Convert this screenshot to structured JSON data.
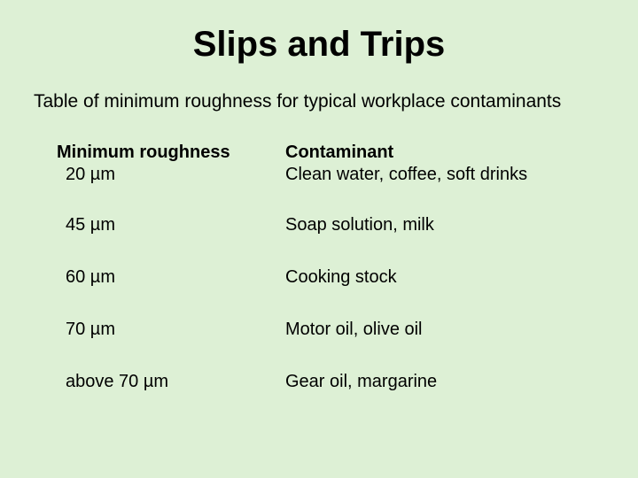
{
  "title": "Slips and Trips",
  "subtitle": "Table of minimum roughness for typical workplace contaminants",
  "table": {
    "header_left": "Minimum roughness",
    "header_right": "Contaminant",
    "rows": [
      {
        "roughness": "20 µm",
        "contaminant": "Clean water, coffee, soft drinks"
      },
      {
        "roughness": "45 µm",
        "contaminant": "Soap solution, milk"
      },
      {
        "roughness": "60 µm",
        "contaminant": "Cooking stock"
      },
      {
        "roughness": "70 µm",
        "contaminant": "Motor oil, olive oil"
      },
      {
        "roughness": "above 70 µm",
        "contaminant": "Gear oil, margarine"
      }
    ]
  },
  "style": {
    "background_color": "#ddf0d5",
    "text_color": "#000000",
    "title_fontsize": 40,
    "subtitle_fontsize": 21,
    "body_fontsize": 20,
    "font_family": "Arial"
  }
}
